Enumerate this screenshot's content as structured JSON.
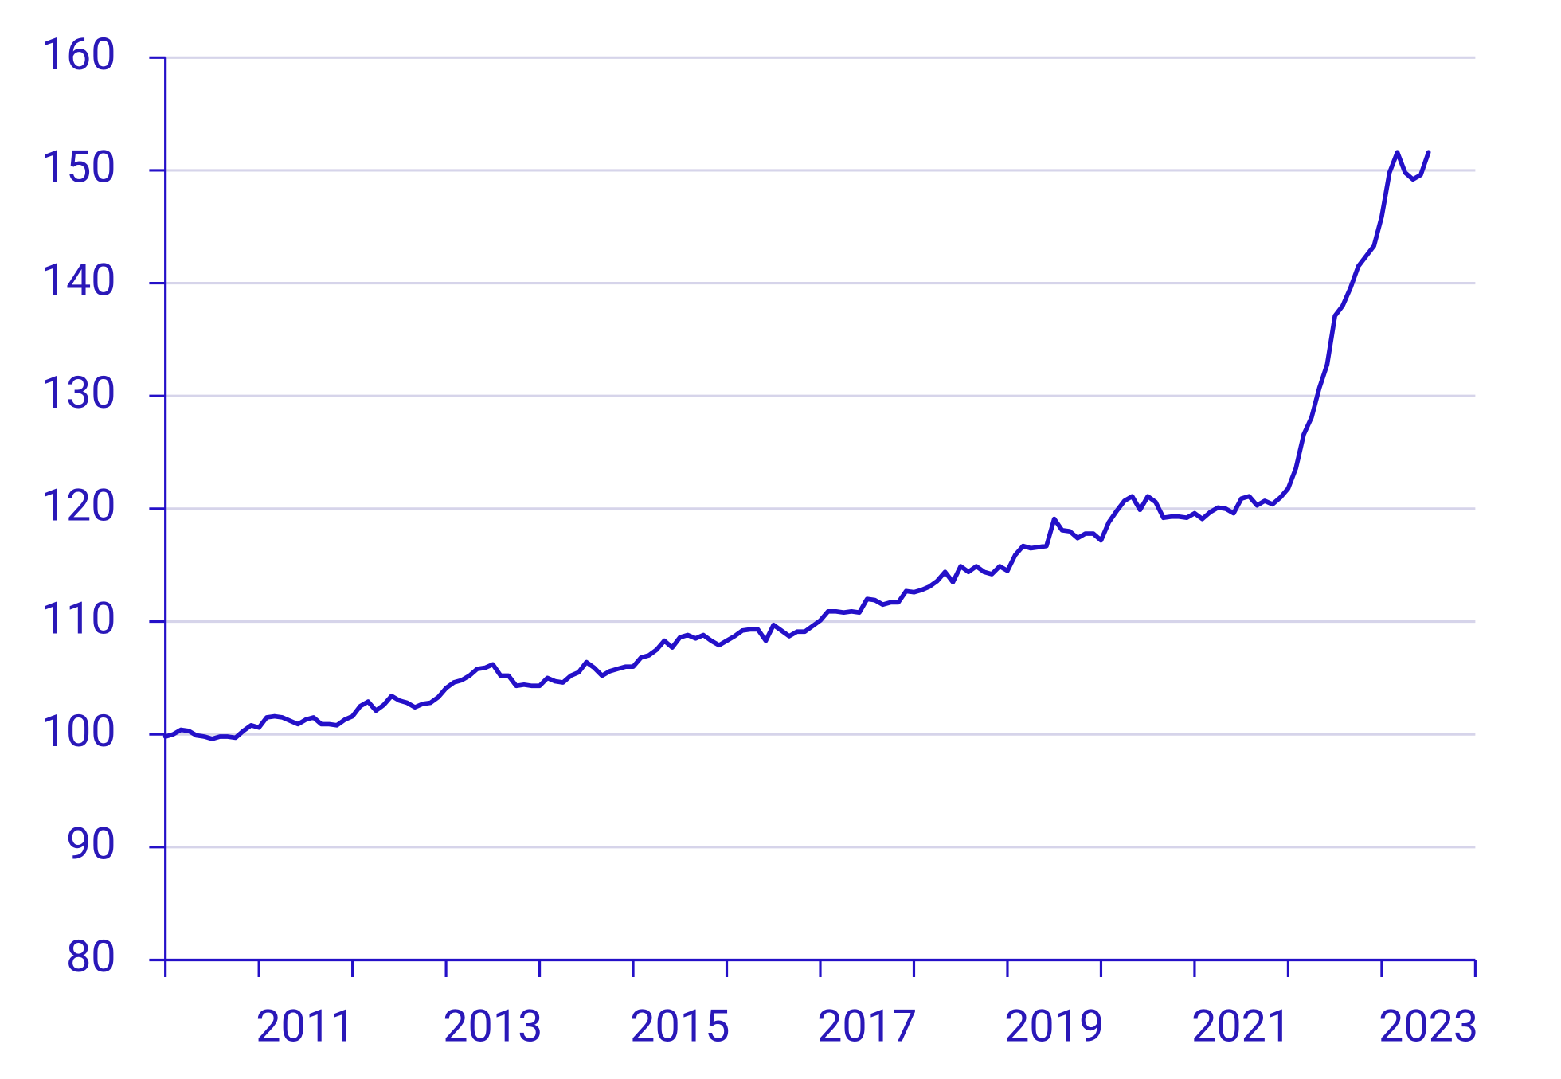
{
  "chart_data": {
    "type": "line",
    "x": [
      2010,
      2010.083,
      2010.167,
      2010.25,
      2010.333,
      2010.417,
      2010.5,
      2010.583,
      2010.667,
      2010.75,
      2010.833,
      2010.917,
      2011,
      2011.083,
      2011.167,
      2011.25,
      2011.333,
      2011.417,
      2011.5,
      2011.583,
      2011.667,
      2011.75,
      2011.833,
      2011.917,
      2012,
      2012.083,
      2012.167,
      2012.25,
      2012.333,
      2012.417,
      2012.5,
      2012.583,
      2012.667,
      2012.75,
      2012.833,
      2012.917,
      2013,
      2013.083,
      2013.167,
      2013.25,
      2013.333,
      2013.417,
      2013.5,
      2013.583,
      2013.667,
      2013.75,
      2013.833,
      2013.917,
      2014,
      2014.083,
      2014.167,
      2014.25,
      2014.333,
      2014.417,
      2014.5,
      2014.583,
      2014.667,
      2014.75,
      2014.833,
      2014.917,
      2015,
      2015.083,
      2015.167,
      2015.25,
      2015.333,
      2015.417,
      2015.5,
      2015.583,
      2015.667,
      2015.75,
      2015.833,
      2015.917,
      2016,
      2016.083,
      2016.167,
      2016.25,
      2016.333,
      2016.417,
      2016.5,
      2016.583,
      2016.667,
      2016.75,
      2016.833,
      2016.917,
      2017,
      2017.083,
      2017.167,
      2017.25,
      2017.333,
      2017.417,
      2017.5,
      2017.583,
      2017.667,
      2017.75,
      2017.833,
      2017.917,
      2018,
      2018.083,
      2018.167,
      2018.25,
      2018.333,
      2018.417,
      2018.5,
      2018.583,
      2018.667,
      2018.75,
      2018.833,
      2018.917,
      2019,
      2019.083,
      2019.167,
      2019.25,
      2019.333,
      2019.417,
      2019.5,
      2019.583,
      2019.667,
      2019.75,
      2019.833,
      2019.917,
      2020,
      2020.083,
      2020.167,
      2020.25,
      2020.333,
      2020.417,
      2020.5,
      2020.583,
      2020.667,
      2020.75,
      2020.833,
      2020.917,
      2021,
      2021.083,
      2021.167,
      2021.25,
      2021.333,
      2021.417,
      2021.5,
      2021.583,
      2021.667,
      2021.75,
      2021.833,
      2021.917,
      2022,
      2022.083,
      2022.167,
      2022.25,
      2022.333,
      2022.417,
      2022.5,
      2022.583,
      2022.667,
      2022.75,
      2022.833,
      2022.917,
      2023,
      2023.083,
      2023.167,
      2023.25,
      2023.333,
      2023.417,
      2023.5
    ],
    "series": [
      {
        "color": "#2410c8",
        "values": [
          99.8,
          100.0,
          100.4,
          100.3,
          99.9,
          99.8,
          99.6,
          99.8,
          99.8,
          99.7,
          100.3,
          100.8,
          100.6,
          101.5,
          101.6,
          101.5,
          101.2,
          100.9,
          101.3,
          101.5,
          100.9,
          100.9,
          100.8,
          101.3,
          101.6,
          102.5,
          102.9,
          102.1,
          102.6,
          103.4,
          103.0,
          102.8,
          102.4,
          102.7,
          102.8,
          103.3,
          104.1,
          104.6,
          104.8,
          105.2,
          105.8,
          105.9,
          106.2,
          105.2,
          105.2,
          104.3,
          104.4,
          104.3,
          104.3,
          105.0,
          104.7,
          104.6,
          105.2,
          105.5,
          106.4,
          105.9,
          105.2,
          105.6,
          105.8,
          106.0,
          106.0,
          106.8,
          107.0,
          107.5,
          108.3,
          107.7,
          108.6,
          108.8,
          108.5,
          108.8,
          108.3,
          107.9,
          108.3,
          108.7,
          109.2,
          109.3,
          109.3,
          108.3,
          109.7,
          109.2,
          108.7,
          109.1,
          109.1,
          109.6,
          110.1,
          110.9,
          110.9,
          110.8,
          110.9,
          110.8,
          112.0,
          111.9,
          111.5,
          111.7,
          111.7,
          112.7,
          112.6,
          112.8,
          113.1,
          113.6,
          114.4,
          113.5,
          114.9,
          114.4,
          114.9,
          114.4,
          114.2,
          114.9,
          114.5,
          115.9,
          116.7,
          116.5,
          116.6,
          116.7,
          119.1,
          118.1,
          118.0,
          117.4,
          117.8,
          117.8,
          117.2,
          118.8,
          119.8,
          120.7,
          121.1,
          119.9,
          121.1,
          120.6,
          119.2,
          119.3,
          119.3,
          119.2,
          119.6,
          119.1,
          119.7,
          120.1,
          120.0,
          119.6,
          120.9,
          121.1,
          120.3,
          120.7,
          120.4,
          121.0,
          121.8,
          123.6,
          126.6,
          128.1,
          130.7,
          132.8,
          137.1,
          138.0,
          139.6,
          141.5,
          142.4,
          143.3,
          145.9,
          149.8,
          151.6,
          149.8,
          149.2,
          149.6,
          151.6
        ]
      }
    ],
    "xlim": [
      2010,
      2024
    ],
    "xticks": [
      {
        "value": 2011.5,
        "label": "2011"
      },
      {
        "value": 2013.5,
        "label": "2013"
      },
      {
        "value": 2015.5,
        "label": "2015"
      },
      {
        "value": 2017.5,
        "label": "2017"
      },
      {
        "value": 2019.5,
        "label": "2019"
      },
      {
        "value": 2021.5,
        "label": "2021"
      },
      {
        "value": 2023.5,
        "label": "2023"
      }
    ],
    "xminor_ticks": [
      2010,
      2011,
      2012,
      2013,
      2014,
      2015,
      2016,
      2017,
      2018,
      2019,
      2020,
      2021,
      2022,
      2023,
      2024
    ],
    "ylim": [
      80,
      160
    ],
    "yticks": [
      80,
      90,
      100,
      110,
      120,
      130,
      140,
      150,
      160
    ],
    "grid": true
  }
}
